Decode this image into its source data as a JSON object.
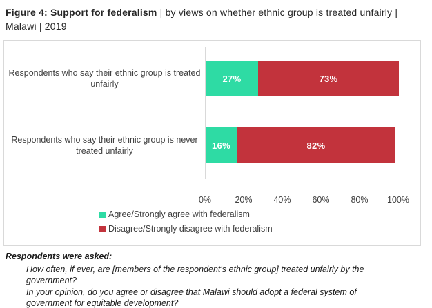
{
  "title": {
    "bold": "Figure 4: Support for federalism",
    "rest": " | by views on whether ethnic group is treated unfairly | Malawi | 2019"
  },
  "chart_data": {
    "type": "bar",
    "orientation": "horizontal",
    "stacked": true,
    "categories": [
      "Respondents who say their ethnic group is treated unfairly",
      "Respondents who say their ethnic group is never treated unfairly"
    ],
    "series": [
      {
        "name": "Agree/Strongly agree with federalism",
        "color": "#2EDBA4",
        "values": [
          27,
          16
        ]
      },
      {
        "name": "Disagree/Strongly disagree with federalism",
        "color": "#C2333C",
        "values": [
          73,
          82
        ]
      }
    ],
    "value_labels": [
      [
        "27%",
        "73%"
      ],
      [
        "16%",
        "82%"
      ]
    ],
    "x_axis": {
      "ticks": [
        "0%",
        "20%",
        "40%",
        "60%",
        "80%",
        "100%"
      ],
      "min": 0,
      "max": 100
    },
    "legend_position": "bottom",
    "grid": false,
    "axis_color": "#D9D9D9"
  },
  "footnote": {
    "heading": "Respondents were asked:",
    "questions": [
      "How often, if ever, are [members of the respondent's ethnic group] treated unfairly by the government?",
      "In your opinion, do you agree or disagree that Malawi should adopt a federal system of government for equitable development?"
    ]
  }
}
